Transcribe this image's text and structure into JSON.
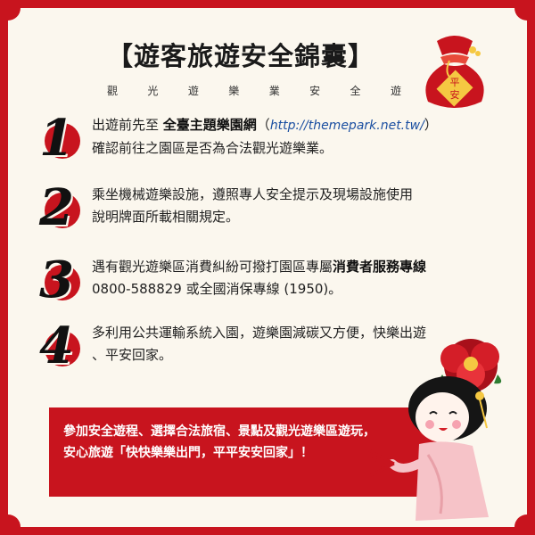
{
  "header": {
    "title": "【遊客旅遊安全錦囊】",
    "subtitle_chars": [
      "觀",
      "光",
      "遊",
      "樂",
      "業",
      "安",
      "全",
      "遊"
    ]
  },
  "badge": {
    "text_top": "平",
    "text_bottom": "安"
  },
  "items": [
    {
      "number": "1",
      "pre": "出遊前先至 ",
      "bold": "全臺主題樂園網",
      "paren_open": "（",
      "url": "http://themepark.net.tw/",
      "paren_close": "）",
      "line2": "確認前往之園區是否為合法觀光遊樂業。"
    },
    {
      "number": "2",
      "line1": "乘坐機械遊樂設施，遵照專人安全提示及現場設施使用",
      "line2": "說明牌面所載相關規定。"
    },
    {
      "number": "3",
      "pre": "遇有觀光遊樂區消費糾紛可撥打園區專屬",
      "bold": "消費者服務專線",
      "line2": "0800-588829 或全國消保專線 (1950)。"
    },
    {
      "number": "4",
      "line1": "多利用公共運輸系統入園，遊樂園減碳又方便，快樂出遊",
      "line2": "、平安回家。"
    }
  ],
  "banner": {
    "line1": "參加安全遊程、選擇合法旅宿、景點及觀光遊樂區遊玩，",
    "line2": "安心旅遊「快快樂樂出門，平平安安回家」！"
  },
  "colors": {
    "accent": "#c8141e",
    "paper": "#fbf7ee",
    "link": "#1b4fa1"
  }
}
